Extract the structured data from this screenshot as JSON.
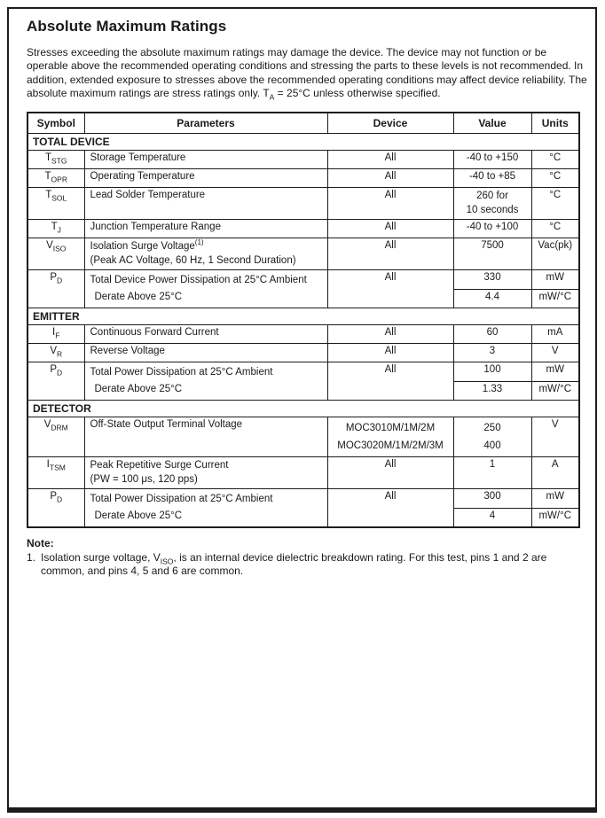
{
  "page": {
    "title": "Absolute Maximum Ratings",
    "intro": {
      "text": "Stresses exceeding the absolute maximum ratings may damage the device. The device may not function or be operable above the recommended operating conditions and stressing the parts to these levels is not recommended. In addition, extended exposure to stresses above the recommended operating conditions may affect device reliability. The absolute maximum ratings are stress ratings only. T",
      "sub": "A",
      "text_after": " = 25°C unless otherwise specified."
    }
  },
  "table": {
    "headers": {
      "symbol": "Symbol",
      "parameters": "Parameters",
      "device": "Device",
      "value": "Value",
      "units": "Units"
    },
    "sections": [
      {
        "label": "TOTAL DEVICE",
        "rows": [
          {
            "sym": "T",
            "sub": "STG",
            "p1": "Storage Temperature",
            "dev": "All",
            "val": "-40 to +150",
            "unit": "°C"
          },
          {
            "sym": "T",
            "sub": "OPR",
            "p1": "Operating Temperature",
            "dev": "All",
            "val": "-40 to +85",
            "unit": "°C"
          },
          {
            "sym": "T",
            "sub": "SOL",
            "p1": "Lead Solder Temperature",
            "dev": "All",
            "val1": "260 for",
            "val2": "10 seconds",
            "unit": "°C"
          },
          {
            "sym": "T",
            "sub": "J",
            "p1": "Junction Temperature Range",
            "dev": "All",
            "val": "-40 to +100",
            "unit": "°C"
          },
          {
            "sym": "V",
            "sub": "ISO",
            "p1": "Isolation Surge Voltage",
            "sup": "(1)",
            "p2": "(Peak AC Voltage, 60 Hz, 1 Second Duration)",
            "dev": "All",
            "val": "7500",
            "unit": "Vac(pk)"
          },
          {
            "sym": "P",
            "sub": "D",
            "p1": "Total Device Power Dissipation at 25°C Ambient",
            "p2": "Derate Above 25°C",
            "dev": "All",
            "val_top": "330",
            "val_bot": "4.4",
            "unit_top": "mW",
            "unit_bot": "mW/°C"
          }
        ]
      },
      {
        "label": "EMITTER",
        "rows": [
          {
            "sym": "I",
            "sub": "F",
            "p1": "Continuous Forward Current",
            "dev": "All",
            "val": "60",
            "unit": "mA"
          },
          {
            "sym": "V",
            "sub": "R",
            "p1": "Reverse Voltage",
            "dev": "All",
            "val": "3",
            "unit": "V"
          },
          {
            "sym": "P",
            "sub": "D",
            "p1": "Total Power Dissipation at 25°C Ambient",
            "p2": "Derate Above 25°C",
            "dev": "All",
            "val_top": "100",
            "val_bot": "1.33",
            "unit_top": "mW",
            "unit_bot": "mW/°C"
          }
        ]
      },
      {
        "label": "DETECTOR",
        "rows": [
          {
            "sym": "V",
            "sub": "DRM",
            "p1": "Off-State Output Terminal Voltage",
            "dev1": "MOC3010M/1M/2M",
            "dev2": "MOC3020M/1M/2M/3M",
            "val1": "250",
            "val2": "400",
            "unit": "V"
          },
          {
            "sym": "I",
            "sub": "TSM",
            "p1": "Peak Repetitive Surge Current",
            "p2": "(PW = 100 μs, 120 pps)",
            "dev": "All",
            "val": "1",
            "unit": "A"
          },
          {
            "sym": "P",
            "sub": "D",
            "p1": "Total Power Dissipation at 25°C Ambient",
            "p2": "Derate Above 25°C",
            "dev": "All",
            "val_top": "300",
            "val_bot": "4",
            "unit_top": "mW",
            "unit_bot": "mW/°C"
          }
        ]
      }
    ]
  },
  "note": {
    "label": "Note:",
    "number": "1.",
    "text": "Isolation surge voltage, V",
    "sub": "ISO",
    "text_after": ", is an internal device dielectric breakdown rating. For this test, pins 1 and 2 are common, and pins 4, 5 and 6 are common."
  }
}
